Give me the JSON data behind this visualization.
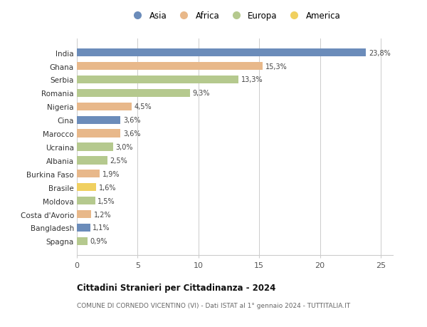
{
  "countries": [
    "India",
    "Ghana",
    "Serbia",
    "Romania",
    "Nigeria",
    "Cina",
    "Marocco",
    "Ucraina",
    "Albania",
    "Burkina Faso",
    "Brasile",
    "Moldova",
    "Costa d'Avorio",
    "Bangladesh",
    "Spagna"
  ],
  "values": [
    23.8,
    15.3,
    13.3,
    9.3,
    4.5,
    3.6,
    3.6,
    3.0,
    2.5,
    1.9,
    1.6,
    1.5,
    1.2,
    1.1,
    0.9
  ],
  "labels": [
    "23,8%",
    "15,3%",
    "13,3%",
    "9,3%",
    "4,5%",
    "3,6%",
    "3,6%",
    "3,0%",
    "2,5%",
    "1,9%",
    "1,6%",
    "1,5%",
    "1,2%",
    "1,1%",
    "0,9%"
  ],
  "continents": [
    "Asia",
    "Africa",
    "Europa",
    "Europa",
    "Africa",
    "Asia",
    "Africa",
    "Europa",
    "Europa",
    "Africa",
    "America",
    "Europa",
    "Africa",
    "Asia",
    "Europa"
  ],
  "colors": {
    "Asia": "#6b8cba",
    "Africa": "#e8b88a",
    "Europa": "#b5c98e",
    "America": "#f0d060"
  },
  "xlim": [
    0,
    26
  ],
  "xticks": [
    0,
    5,
    10,
    15,
    20,
    25
  ],
  "title": "Cittadini Stranieri per Cittadinanza - 2024",
  "subtitle": "COMUNE DI CORNEDO VICENTINO (VI) - Dati ISTAT al 1° gennaio 2024 - TUTTITALIA.IT",
  "background_color": "#ffffff",
  "grid_color": "#cccccc"
}
